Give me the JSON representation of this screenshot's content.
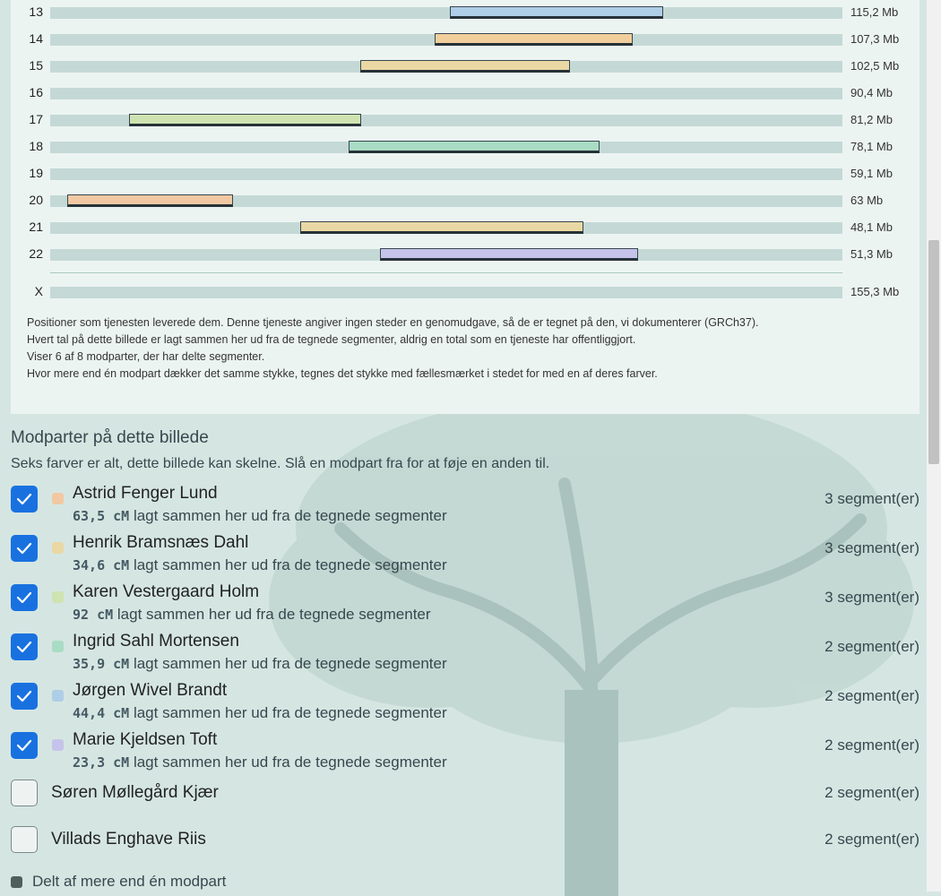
{
  "chromosomes": [
    {
      "label": "13",
      "size": "115,2 Mb",
      "segments": [
        {
          "start": 0.504,
          "end": 0.774,
          "color": "#aecde6"
        }
      ]
    },
    {
      "label": "14",
      "size": "107,3 Mb",
      "segments": [
        {
          "start": 0.485,
          "end": 0.735,
          "color": "#f1cf9d"
        }
      ]
    },
    {
      "label": "15",
      "size": "102,5 Mb",
      "segments": [
        {
          "start": 0.391,
          "end": 0.656,
          "color": "#ead8a4"
        }
      ]
    },
    {
      "label": "16",
      "size": "90,4 Mb",
      "segments": []
    },
    {
      "label": "17",
      "size": "81,2 Mb",
      "segments": [
        {
          "start": 0.1,
          "end": 0.393,
          "color": "#cfe3b1"
        }
      ]
    },
    {
      "label": "18",
      "size": "78,1 Mb",
      "segments": [
        {
          "start": 0.377,
          "end": 0.693,
          "color": "#a9dcc4"
        }
      ]
    },
    {
      "label": "19",
      "size": "59,1 Mb",
      "segments": []
    },
    {
      "label": "20",
      "size": "63 Mb",
      "segments": [
        {
          "start": 0.021,
          "end": 0.231,
          "color": "#f2c8a3"
        }
      ]
    },
    {
      "label": "21",
      "size": "48,1 Mb",
      "segments": [
        {
          "start": 0.316,
          "end": 0.673,
          "color": "#ead8a4"
        }
      ]
    },
    {
      "label": "22",
      "size": "51,3 Mb",
      "segments": [
        {
          "start": 0.416,
          "end": 0.742,
          "color": "#c6c3ea"
        }
      ]
    }
  ],
  "chromosome_x": {
    "label": "X",
    "size": "155,3 Mb"
  },
  "notes": [
    "Positioner som tjenesten leverede dem. Denne tjeneste angiver ingen steder en genomudgave, så de er tegnet på den, vi dokumenterer (GRCh37).",
    "Hvert tal på dette billede er lagt sammen her ud fra de tegnede segmenter, aldrig en total som en tjeneste har offentliggjort.",
    "Viser 6 af 8 modparter, der har delte segmenter.",
    "Hvor mere end én modpart dækker det samme stykke, tegnes det stykke med fællesmærket i stedet for med en af deres farver."
  ],
  "matches_section": {
    "title": "Modparter på dette billede",
    "subtitle": "Seks farver er alt, dette billede kan skelne. Slå en modpart fra for at føje en anden til.",
    "sub_suffix": "lagt sammen her ud fra de tegnede segmenter"
  },
  "matches": [
    {
      "name": "Astrid Fenger Lund",
      "cm": "63,5 cM",
      "count": "3 segment(er)",
      "checked": true,
      "color": "#f2c8a3"
    },
    {
      "name": "Henrik Bramsnæs Dahl",
      "cm": "34,6 cM",
      "count": "3 segment(er)",
      "checked": true,
      "color": "#ead8a4"
    },
    {
      "name": "Karen Vestergaard Holm",
      "cm": "92 cM",
      "count": "3 segment(er)",
      "checked": true,
      "color": "#cfe3b1"
    },
    {
      "name": "Ingrid Sahl Mortensen",
      "cm": "35,9 cM",
      "count": "2 segment(er)",
      "checked": true,
      "color": "#a9dcc4"
    },
    {
      "name": "Jørgen Wivel Brandt",
      "cm": "44,4 cM",
      "count": "2 segment(er)",
      "checked": true,
      "color": "#aecde6"
    },
    {
      "name": "Marie Kjeldsen Toft",
      "cm": "23,3 cM",
      "count": "2 segment(er)",
      "checked": true,
      "color": "#c6c3ea"
    },
    {
      "name": "Søren Møllegård Kjær",
      "count": "2 segment(er)",
      "checked": false
    },
    {
      "name": "Villads Enghave Riis",
      "count": "2 segment(er)",
      "checked": false
    }
  ],
  "legend": {
    "label": "Delt af mere end én modpart",
    "color": "#4f5f5c"
  }
}
